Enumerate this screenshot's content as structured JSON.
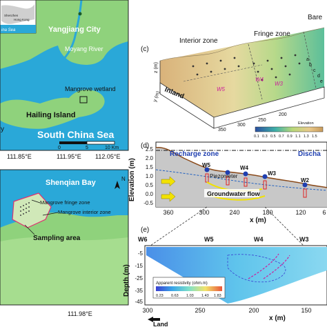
{
  "map_top": {
    "inset_labels": [
      "Shenzhen",
      "Hong Kong",
      "ina Sea"
    ],
    "city": "Yangjiang City",
    "river": "Moyang River",
    "wetland": "Mangrove wetland",
    "island": "Hailing Island",
    "sea": "South China Sea",
    "bay_partial": "y",
    "scale_start": "0",
    "scale_mid": "5",
    "scale_end": "10 Km",
    "lon_ticks": [
      "111.85°E",
      "111.95°E",
      "112.05°E"
    ]
  },
  "map_bottom": {
    "bay": "Shenqian Bay",
    "fringe": "Mangrove fringe zone",
    "interior": "Mangrove interior zone",
    "sampling": "Sampling area",
    "lon_tick": "111.98°E",
    "north": "N"
  },
  "panel_c": {
    "tag": "(c)",
    "interior_zone": "Interior zone",
    "fringe_zone": "Fringe zone",
    "bare": "Bare",
    "inland": "Inland",
    "wells": [
      "W5",
      "W4",
      "W3"
    ],
    "points": [
      "a",
      "b",
      "c",
      "d",
      "e"
    ],
    "x_ticks": [
      "350",
      "300",
      "250",
      "200"
    ],
    "colorbar_ticks": [
      "0.1",
      "0.3",
      "0.5",
      "0.7",
      "0.9",
      "1.1",
      "1.3",
      "1.5"
    ],
    "colorbar_label": "Elevation",
    "y_axis_label": "y (m)",
    "z_axis_label": "z (m)"
  },
  "panel_d": {
    "tag": "(d)",
    "recharge": "Recharge zone",
    "discharge": "Discha",
    "piezometer": "Piezometer",
    "flow": "Groundwater flow",
    "ylabel": "Elevation (m)",
    "xlabel": "x (m)",
    "y_ticks": [
      "2.5",
      "2.0",
      "1.5",
      "1.0",
      "0.5",
      "0.0",
      "-0.5"
    ],
    "x_ticks": [
      "360",
      "300",
      "240",
      "180",
      "120",
      "6"
    ],
    "wells": [
      "W6",
      "W5",
      "W4",
      "W3",
      "W2"
    ]
  },
  "panel_e": {
    "tag": "(e)",
    "top_wells": [
      "W6",
      "W5",
      "W4",
      "W3"
    ],
    "ylabel": "Depth (m)",
    "y_ticks": [
      "-5",
      "-15",
      "-25",
      "-35",
      "-45"
    ],
    "x_ticks": [
      "300",
      "250",
      "200",
      "150"
    ],
    "xlabel": "x (m)",
    "land": "Land",
    "colorbar_title": "Apparent resistivity (ohm.m)",
    "colorbar_ticks": [
      "0.23",
      "0.63",
      "1.03",
      "1.43",
      "1.83"
    ]
  }
}
